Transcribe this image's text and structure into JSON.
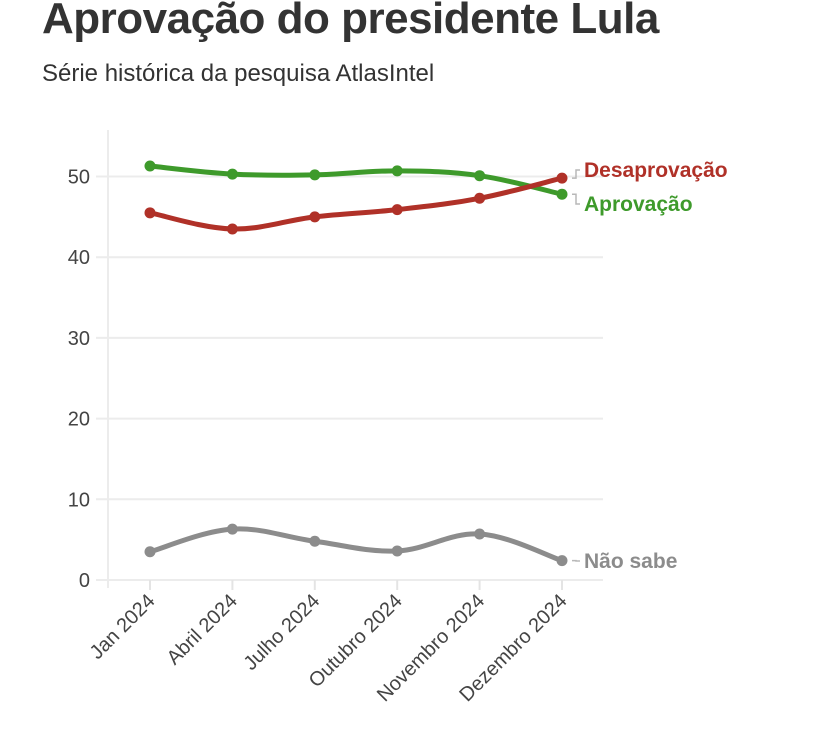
{
  "chart_data": {
    "type": "line",
    "title": "Aprovação do presidente Lula",
    "subtitle": "Série histórica da pesquisa AtlasIntel",
    "xlabel": "",
    "ylabel": "",
    "categories": [
      "Jan 2024",
      "Abril 2024",
      "Julho 2024",
      "Outubro 2024",
      "Novembro 2024",
      "Dezembro 2024"
    ],
    "ylim": [
      0,
      55
    ],
    "yticks": [
      0,
      10,
      20,
      30,
      40,
      50
    ],
    "grid": true,
    "legend": "direct labels at line ends (right)",
    "series": [
      {
        "name": "Desaprovação",
        "color": "#b03128",
        "values": [
          45.5,
          43.5,
          45.0,
          45.9,
          47.3,
          49.8
        ]
      },
      {
        "name": "Aprovação",
        "color": "#3e9a2b",
        "values": [
          51.3,
          50.3,
          50.2,
          50.7,
          50.1,
          47.8
        ]
      },
      {
        "name": "Não sabe",
        "color": "#8c8c8c",
        "values": [
          3.5,
          6.3,
          4.8,
          3.6,
          5.7,
          2.4
        ]
      }
    ]
  }
}
